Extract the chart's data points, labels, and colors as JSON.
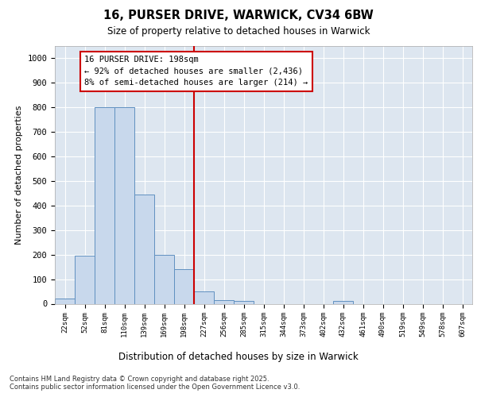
{
  "title_line1": "16, PURSER DRIVE, WARWICK, CV34 6BW",
  "title_line2": "Size of property relative to detached houses in Warwick",
  "xlabel": "Distribution of detached houses by size in Warwick",
  "ylabel": "Number of detached properties",
  "bin_labels": [
    "22sqm",
    "52sqm",
    "81sqm",
    "110sqm",
    "139sqm",
    "169sqm",
    "198sqm",
    "227sqm",
    "256sqm",
    "285sqm",
    "315sqm",
    "344sqm",
    "373sqm",
    "402sqm",
    "432sqm",
    "461sqm",
    "490sqm",
    "519sqm",
    "549sqm",
    "578sqm",
    "607sqm"
  ],
  "bar_values": [
    20,
    195,
    800,
    800,
    445,
    200,
    140,
    50,
    15,
    10,
    0,
    0,
    0,
    0,
    10,
    0,
    0,
    0,
    0,
    0,
    0
  ],
  "bar_color": "#c8d8ec",
  "bar_edge_color": "#6090c0",
  "vline_x_index": 6,
  "vline_color": "#cc0000",
  "annotation_text": "16 PURSER DRIVE: 198sqm\n← 92% of detached houses are smaller (2,436)\n8% of semi-detached houses are larger (214) →",
  "annotation_box_color": "#ffffff",
  "annotation_edge_color": "#cc0000",
  "ylim": [
    0,
    1050
  ],
  "yticks": [
    0,
    100,
    200,
    300,
    400,
    500,
    600,
    700,
    800,
    900,
    1000
  ],
  "background_color": "#dde6f0",
  "grid_color": "#ffffff",
  "fig_bg_color": "#ffffff",
  "footnote": "Contains HM Land Registry data © Crown copyright and database right 2025.\nContains public sector information licensed under the Open Government Licence v3.0."
}
